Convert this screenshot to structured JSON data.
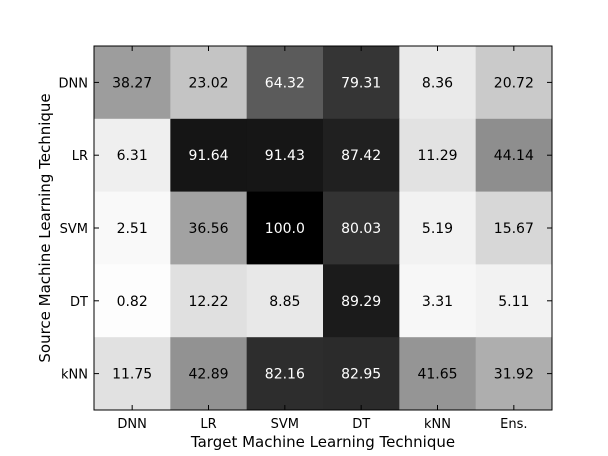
{
  "chart_data": {
    "type": "heatmap",
    "title": "",
    "xlabel": "Target Machine Learning Technique",
    "ylabel": "Source Machine Learning Technique",
    "x_categories": [
      "DNN",
      "LR",
      "SVM",
      "DT",
      "kNN",
      "Ens."
    ],
    "y_categories": [
      "DNN",
      "LR",
      "SVM",
      "DT",
      "kNN"
    ],
    "values": [
      [
        38.27,
        23.02,
        64.32,
        79.31,
        8.36,
        20.72
      ],
      [
        6.31,
        91.64,
        91.43,
        87.42,
        11.29,
        44.14
      ],
      [
        2.51,
        36.56,
        100.0,
        80.03,
        5.19,
        15.67
      ],
      [
        0.82,
        12.22,
        8.85,
        89.29,
        3.31,
        5.11
      ],
      [
        11.75,
        42.89,
        82.16,
        82.95,
        41.65,
        31.92
      ]
    ],
    "value_labels": [
      [
        "38.27",
        "23.02",
        "64.32",
        "79.31",
        "8.36",
        "20.72"
      ],
      [
        "6.31",
        "91.64",
        "91.43",
        "87.42",
        "11.29",
        "44.14"
      ],
      [
        "2.51",
        "36.56",
        "100.0",
        "80.03",
        "5.19",
        "15.67"
      ],
      [
        "0.82",
        "12.22",
        "8.85",
        "89.29",
        "3.31",
        "5.11"
      ],
      [
        "11.75",
        "42.89",
        "82.16",
        "82.95",
        "41.65",
        "31.92"
      ]
    ],
    "value_range": [
      0,
      100
    ],
    "colormap": "greys",
    "grid": false,
    "legend": "none"
  }
}
